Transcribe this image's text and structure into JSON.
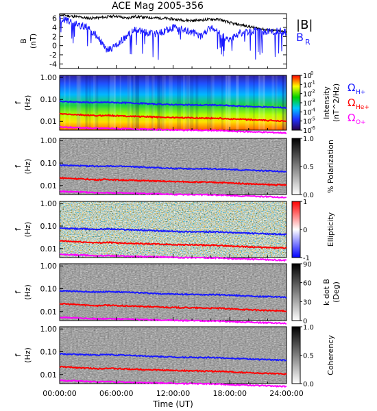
{
  "title": "ACE Mag 2005-356",
  "colors": {
    "black": "#000000",
    "blue": "#1a1aff",
    "red": "#ff0000",
    "magenta": "#ff00ff"
  },
  "chart_data": [
    {
      "type": "line",
      "ylabel_top": "B",
      "ylabel_unit": "(nT)",
      "ylim": [
        -5,
        7
      ],
      "yticks": [
        "6",
        "4",
        "2",
        "0",
        "-2",
        "-4"
      ],
      "legend": [
        "|B|",
        "B",
        "R"
      ],
      "series": [
        {
          "name": "|B|",
          "color": "#000000",
          "x": [
            0,
            1,
            2,
            3,
            4,
            5,
            6,
            7,
            8,
            9,
            10,
            11,
            12,
            13,
            14,
            15,
            16,
            17,
            18,
            19,
            20,
            21,
            22,
            23,
            24
          ],
          "values": [
            6.8,
            6.5,
            6.3,
            6.0,
            6.1,
            6.3,
            6.5,
            6.0,
            6.4,
            6.2,
            6.1,
            6.0,
            5.8,
            5.6,
            5.5,
            5.6,
            5.8,
            5.7,
            5.0,
            4.6,
            4.2,
            3.8,
            3.5,
            3.2,
            3.0
          ]
        },
        {
          "name": "B_R",
          "color": "#1a1aff",
          "x": [
            0,
            1,
            2,
            3,
            4,
            5,
            6,
            7,
            8,
            9,
            10,
            11,
            12,
            13,
            14,
            15,
            16,
            17,
            18,
            19,
            20,
            21,
            22,
            23,
            24
          ],
          "values": [
            6.0,
            5.5,
            4.5,
            4.0,
            2.0,
            -1.0,
            0.0,
            2.0,
            3.5,
            3.0,
            2.5,
            3.0,
            4.0,
            3.5,
            3.0,
            2.0,
            4.0,
            2.5,
            1.0,
            2.8,
            3.0,
            3.2,
            3.0,
            3.2,
            3.0
          ]
        }
      ]
    },
    {
      "type": "heatmap",
      "quantity": "Intensity",
      "unit": "(nT^2/Hz)",
      "ylabel": "f",
      "yunit": "(Hz)",
      "yticks": [
        "1.00",
        "0.10",
        "0.01"
      ],
      "colorbar_ticks": [
        "10",
        "10",
        "10",
        "10",
        "10",
        "10",
        "10"
      ],
      "colorbar_exponents": [
        "0",
        "-1",
        "-2",
        "-3",
        "-4",
        "-5",
        "-6"
      ],
      "legend": [
        "Ω",
        "H+",
        "Ω",
        "He+",
        "Ω",
        "O+"
      ]
    },
    {
      "type": "heatmap",
      "quantity": "% Polarization",
      "ylabel": "f",
      "yunit": "(Hz)",
      "yticks": [
        "1.00",
        "0.10",
        "0.01"
      ],
      "colorbar_ticks": [
        "1.0",
        "0.5",
        "0.0"
      ]
    },
    {
      "type": "heatmap",
      "quantity": "Ellipticity",
      "ylabel": "f",
      "yunit": "(Hz)",
      "yticks": [
        "1.00",
        "0.10",
        "0.01"
      ],
      "colorbar_ticks": [
        "1",
        "0",
        "-1"
      ]
    },
    {
      "type": "heatmap",
      "quantity": "k dot B",
      "unit": "(Deg)",
      "ylabel": "f",
      "yunit": "(Hz)",
      "yticks": [
        "1.00",
        "0.10",
        "0.01"
      ],
      "colorbar_ticks": [
        "90",
        "60",
        "30",
        "0"
      ]
    },
    {
      "type": "heatmap",
      "quantity": "Coherency",
      "ylabel": "f",
      "yunit": "(Hz)",
      "yticks": [
        "1.00",
        "0.10",
        "0.01"
      ],
      "colorbar_ticks": [
        "1.0",
        "0.5",
        "0.0"
      ]
    }
  ],
  "xaxis": {
    "ticks": [
      "00:00:00",
      "06:00:00",
      "12:00:00",
      "18:00:00",
      "24:00:00"
    ],
    "label": "Time (UT)",
    "range_hours": [
      0,
      24
    ]
  },
  "gyro_lines": {
    "H": [
      0.08,
      0.078,
      0.076,
      0.074,
      0.072,
      0.075,
      0.072,
      0.07,
      0.068,
      0.065,
      0.062,
      0.06,
      0.058,
      0.057,
      0.056,
      0.055,
      0.056,
      0.054,
      0.052,
      0.05,
      0.048,
      0.046,
      0.045,
      0.044,
      0.042
    ],
    "He": [
      0.022,
      0.021,
      0.02,
      0.019,
      0.018,
      0.019,
      0.018,
      0.0175,
      0.017,
      0.0165,
      0.016,
      0.0155,
      0.015,
      0.0148,
      0.0145,
      0.0142,
      0.014,
      0.0138,
      0.013,
      0.0125,
      0.012,
      0.0115,
      0.011,
      0.0108,
      0.0105
    ],
    "O": [
      0.0055,
      0.0053,
      0.0052,
      0.005,
      0.0048,
      0.0049,
      0.0047,
      0.0046,
      0.0045,
      0.0044,
      0.0043,
      0.0042,
      0.0041,
      0.004,
      0.004,
      0.0039,
      0.0039,
      0.0038,
      0.0036,
      0.0035,
      0.0034,
      0.0033,
      0.0032,
      0.0031,
      0.003
    ]
  }
}
